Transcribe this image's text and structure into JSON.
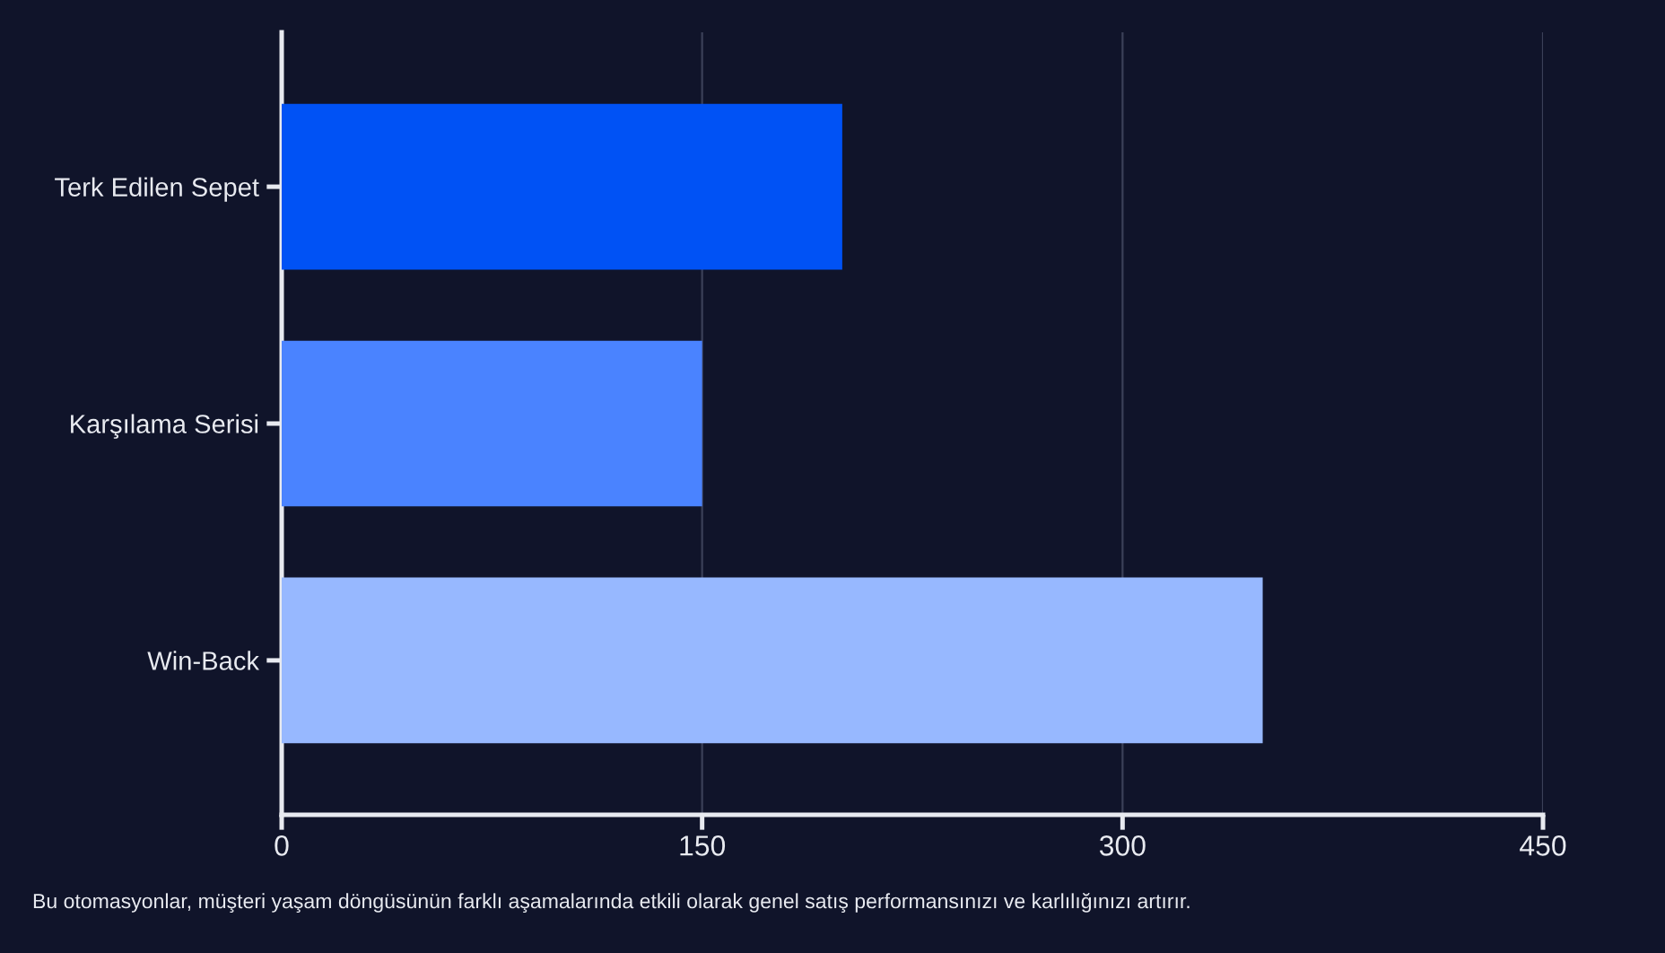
{
  "chart_data": {
    "type": "bar",
    "orientation": "horizontal",
    "categories": [
      "Terk Edilen Sepet",
      "Karşılama Serisi",
      "Win-Back"
    ],
    "values": [
      200,
      150,
      350
    ],
    "colors": [
      "#0052f5",
      "#4a83ff",
      "#97b8ff"
    ],
    "xlim": [
      0,
      450
    ],
    "xticks": [
      0,
      150,
      300,
      450
    ],
    "grid": "x",
    "annotations": [
      "Bu otomasyonlar, müşteri yaşam döngüsünün farklı aşamalarında etkili olarak genel satış performansınızı ve karlılığınızı artırır."
    ]
  }
}
